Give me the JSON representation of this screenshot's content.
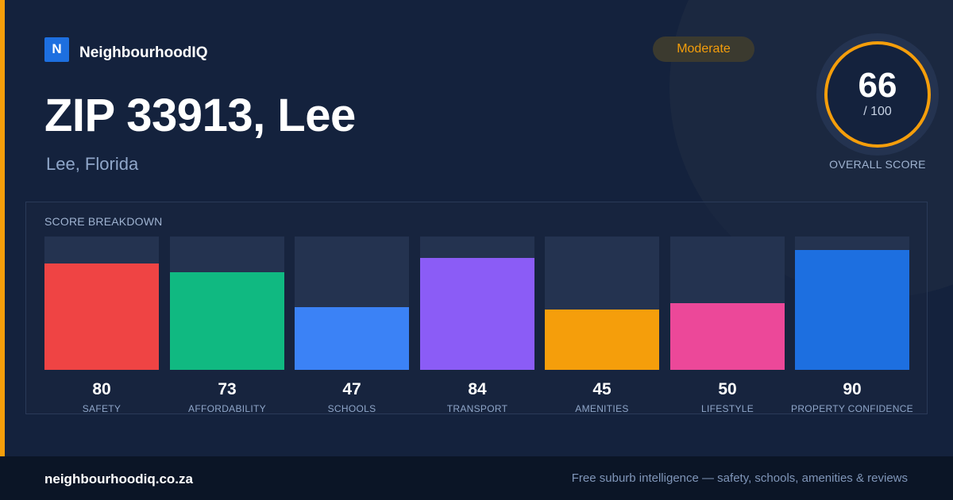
{
  "brand": {
    "logo_letter": "N",
    "name": "NeighbourhoodIQ"
  },
  "location": {
    "title": "ZIP 33913, Lee",
    "subtitle": "Lee, Florida"
  },
  "rating_badge": "Moderate",
  "overall": {
    "score": "66",
    "max_label": "/ 100",
    "caption": "OVERALL SCORE",
    "value": 66,
    "max": 100
  },
  "breakdown": {
    "title": "SCORE BREAKDOWN"
  },
  "chart_data": {
    "type": "bar",
    "title": "SCORE BREAKDOWN",
    "categories": [
      "SAFETY",
      "AFFORDABILITY",
      "SCHOOLS",
      "TRANSPORT",
      "AMENITIES",
      "LIFESTYLE",
      "PROPERTY CONFIDENCE"
    ],
    "values": [
      80,
      73,
      47,
      84,
      45,
      50,
      90
    ],
    "colors": [
      "#ef4444",
      "#10b981",
      "#3b82f6",
      "#8b5cf6",
      "#f59e0b",
      "#ec4899",
      "#1d6fe0"
    ],
    "ylim": [
      0,
      100
    ],
    "grid": false
  },
  "footer": {
    "site": "neighbourhoodiq.co.za",
    "tagline": "Free suburb intelligence — safety, schools, amenities & reviews"
  },
  "colors": {
    "accent": "#f59e0b",
    "background": "#14223d",
    "brand_blue": "#1d6fe0"
  }
}
